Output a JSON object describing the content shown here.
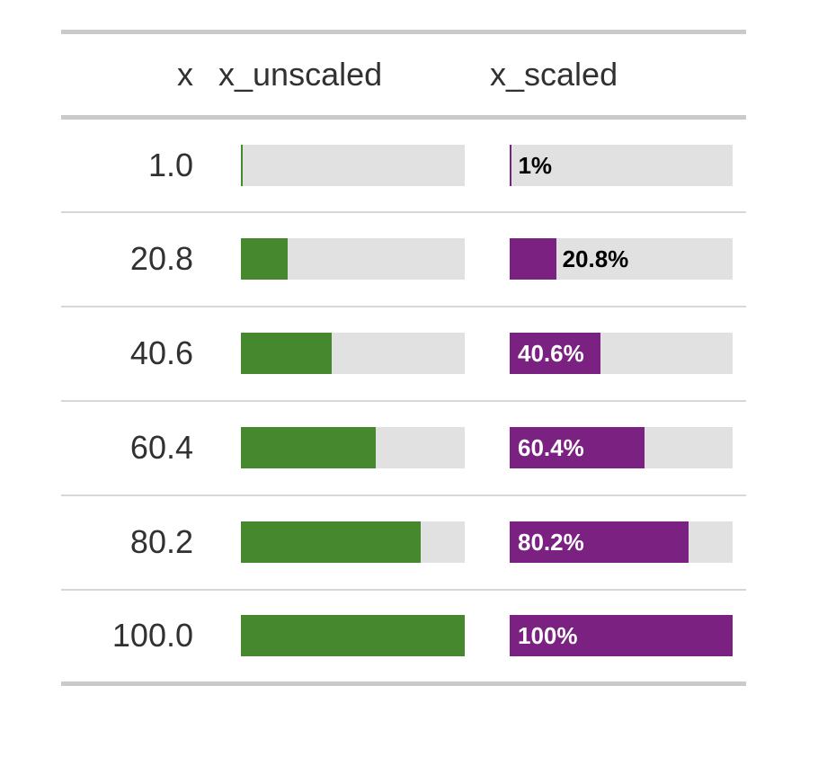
{
  "table": {
    "columns": [
      {
        "label": "x"
      },
      {
        "label": "x_unscaled"
      },
      {
        "label": "x_scaled"
      }
    ],
    "rows": [
      {
        "x": "1.0",
        "unscaled_pct": 1,
        "scaled_pct": 1,
        "scaled_label": "1%",
        "label_position": "outside"
      },
      {
        "x": "20.8",
        "unscaled_pct": 20.8,
        "scaled_pct": 20.8,
        "scaled_label": "20.8%",
        "label_position": "outside"
      },
      {
        "x": "40.6",
        "unscaled_pct": 40.6,
        "scaled_pct": 40.6,
        "scaled_label": "40.6%",
        "label_position": "inside"
      },
      {
        "x": "60.4",
        "unscaled_pct": 60.4,
        "scaled_pct": 60.4,
        "scaled_label": "60.4%",
        "label_position": "inside"
      },
      {
        "x": "80.2",
        "unscaled_pct": 80.2,
        "scaled_pct": 80.2,
        "scaled_label": "80.2%",
        "label_position": "inside"
      },
      {
        "x": "100.0",
        "unscaled_pct": 100,
        "scaled_pct": 100,
        "scaled_label": "100%",
        "label_position": "inside"
      }
    ],
    "colors": {
      "unscaled_fill": "#45882D",
      "scaled_fill": "#7A2182",
      "bar_background": "#E1E1E1",
      "border": "#CACACA",
      "row_separator": "#D7D7D7",
      "text": "#313131",
      "label_outside": "#000000",
      "label_inside": "#FFFFFF"
    }
  },
  "chart_data": {
    "type": "table",
    "title": "",
    "columns": [
      "x",
      "x_unscaled",
      "x_scaled"
    ],
    "rows": [
      {
        "x": 1.0,
        "x_unscaled": 1.0,
        "x_scaled": 1.0
      },
      {
        "x": 20.8,
        "x_unscaled": 20.8,
        "x_scaled": 20.8
      },
      {
        "x": 40.6,
        "x_unscaled": 40.6,
        "x_scaled": 40.6
      },
      {
        "x": 60.4,
        "x_unscaled": 60.4,
        "x_scaled": 60.4
      },
      {
        "x": 80.2,
        "x_unscaled": 80.2,
        "x_scaled": 80.2
      },
      {
        "x": 100.0,
        "x_unscaled": 100.0,
        "x_scaled": 100.0
      }
    ],
    "bar_columns": {
      "x_unscaled": {
        "style": "percent-bar",
        "fill": "#45882D",
        "background": "#E1E1E1",
        "labels": false,
        "range": [
          0,
          100
        ]
      },
      "x_scaled": {
        "style": "percent-bar",
        "fill": "#7A2182",
        "background": "#E1E1E1",
        "labels": true,
        "range": [
          0,
          100
        ],
        "label_values": [
          "1%",
          "20.8%",
          "40.6%",
          "60.4%",
          "80.2%",
          "100%"
        ]
      }
    },
    "layout_hints": {
      "grid": false,
      "legend": false,
      "label_cutoff_pct": 40
    }
  }
}
